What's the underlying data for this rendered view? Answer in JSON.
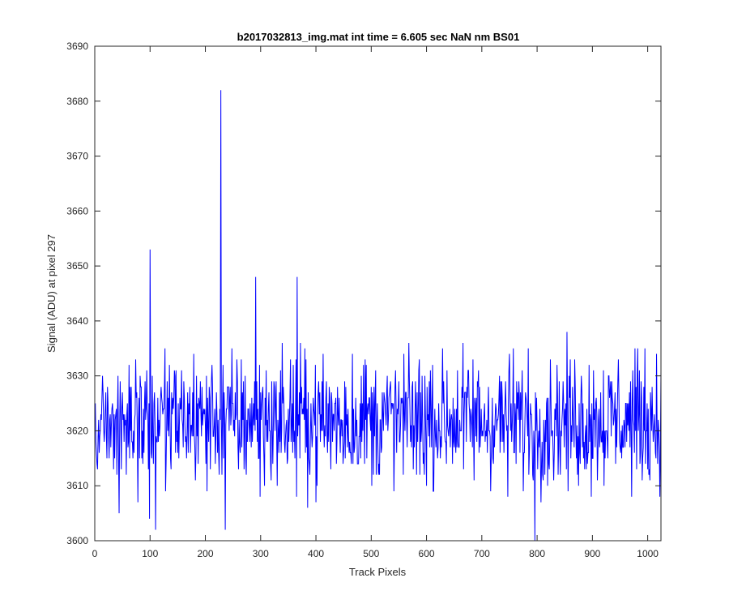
{
  "chart_data": {
    "type": "line",
    "title": "b2017032813_img.mat int time = 6.605 sec  NaN nm BS01",
    "xlabel": "Track Pixels",
    "ylabel": "Signal (ADU) at pixel 297",
    "xlim": [
      0,
      1024
    ],
    "ylim": [
      3600,
      3690
    ],
    "xticks": [
      0,
      100,
      200,
      300,
      400,
      500,
      600,
      700,
      800,
      900,
      1000
    ],
    "yticks": [
      3600,
      3610,
      3620,
      3630,
      3640,
      3650,
      3660,
      3670,
      3680,
      3690
    ],
    "grid": false,
    "legend": "none",
    "series_color": "#0000ff",
    "series": [
      {
        "x_start": 1,
        "x_step": 1,
        "values_note_free": true,
        "values": []
      }
    ],
    "notable_points": [
      {
        "x": 100,
        "y": 3653
      },
      {
        "x": 228,
        "y": 3682
      },
      {
        "x": 291,
        "y": 3648
      },
      {
        "x": 366,
        "y": 3648
      },
      {
        "x": 99,
        "y": 3604
      },
      {
        "x": 110,
        "y": 3602
      },
      {
        "x": 236,
        "y": 3602
      },
      {
        "x": 796,
        "y": 3600
      },
      {
        "x": 44,
        "y": 3605
      }
    ],
    "baseline": {
      "mean": 3622,
      "spread": 9,
      "n": 1024,
      "seed": 297
    }
  }
}
